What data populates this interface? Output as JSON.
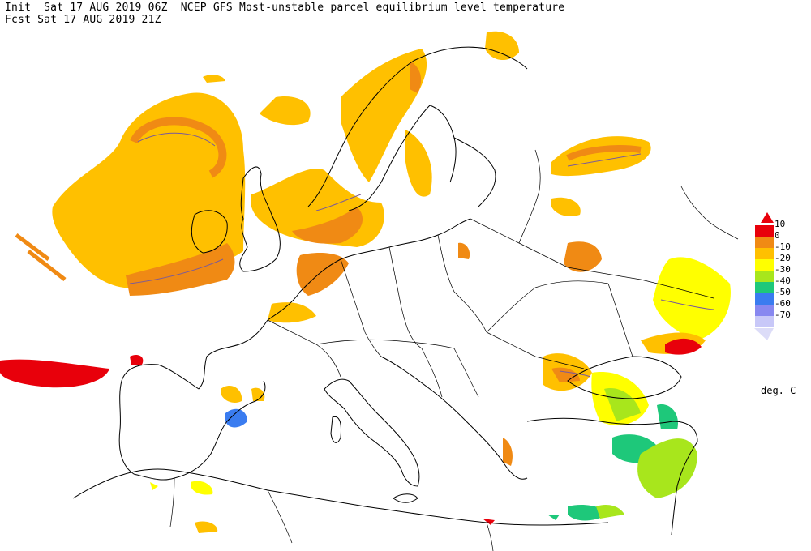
{
  "header": {
    "line1": "Init  Sat 17 AUG 2019 06Z  NCEP GFS Most-unstable parcel equilibrium level temperature",
    "line2": "Fcst Sat 17 AUG 2019 21Z"
  },
  "legend": {
    "unit": "deg. C",
    "levels": [
      {
        "label": "10",
        "color": "#e8000b"
      },
      {
        "label": "0",
        "color": "#f08a14"
      },
      {
        "label": "-10",
        "color": "#ffc000"
      },
      {
        "label": "-20",
        "color": "#ffff00"
      },
      {
        "label": "-30",
        "color": "#a8e61c"
      },
      {
        "label": "-40",
        "color": "#1ec87a"
      },
      {
        "label": "-50",
        "color": "#3a7cf0"
      },
      {
        "label": "-60",
        "color": "#8888f0"
      },
      {
        "label": "-70",
        "color": "#c8c8f8"
      }
    ],
    "overflow_top_color": "#e8000b",
    "overflow_bottom_color": "#dcdcf8"
  }
}
